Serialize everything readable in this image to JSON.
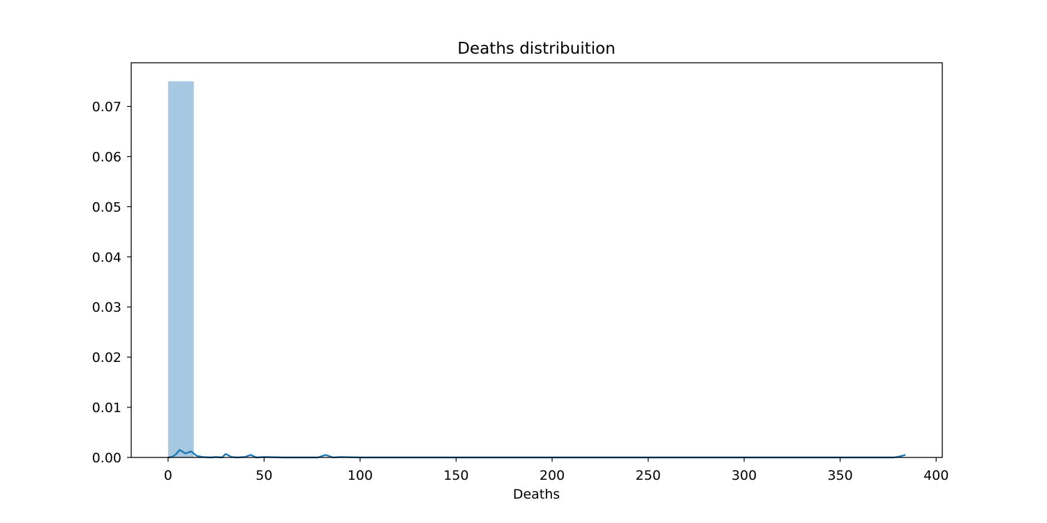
{
  "chart_data": {
    "type": "bar",
    "title": "Deaths distribuition",
    "xlabel": "Deaths",
    "ylabel": "",
    "xlim": [
      -19.2,
      403.2
    ],
    "ylim": [
      0,
      0.0787
    ],
    "grid": false,
    "x_ticks": [
      {
        "value": 0,
        "label": "0"
      },
      {
        "value": 50,
        "label": "50"
      },
      {
        "value": 100,
        "label": "100"
      },
      {
        "value": 150,
        "label": "150"
      },
      {
        "value": 200,
        "label": "200"
      },
      {
        "value": 250,
        "label": "250"
      },
      {
        "value": 300,
        "label": "300"
      },
      {
        "value": 350,
        "label": "350"
      },
      {
        "value": 400,
        "label": "400"
      }
    ],
    "y_ticks": [
      {
        "value": 0.0,
        "label": "0.00"
      },
      {
        "value": 0.01,
        "label": "0.01"
      },
      {
        "value": 0.02,
        "label": "0.02"
      },
      {
        "value": 0.03,
        "label": "0.03"
      },
      {
        "value": 0.04,
        "label": "0.04"
      },
      {
        "value": 0.05,
        "label": "0.05"
      },
      {
        "value": 0.06,
        "label": "0.06"
      },
      {
        "value": 0.07,
        "label": "0.07"
      }
    ],
    "histogram": {
      "color": "#a6c8e0",
      "bins": [
        {
          "x0": 0,
          "x1": 13.4,
          "density": 0.075
        }
      ]
    },
    "kde": {
      "name": "",
      "color": "#1f77b4",
      "points": [
        [
          0,
          0
        ],
        [
          2,
          0.0001
        ],
        [
          4,
          0.0006
        ],
        [
          6,
          0.0015
        ],
        [
          9,
          0.0008
        ],
        [
          12,
          0.0012
        ],
        [
          15,
          0.0003
        ],
        [
          18,
          0.0001
        ],
        [
          22,
          0.0
        ],
        [
          25,
          0.0001
        ],
        [
          28,
          0.0
        ],
        [
          30,
          0.0007
        ],
        [
          33,
          0.0001
        ],
        [
          36,
          0.0
        ],
        [
          40,
          0.0001
        ],
        [
          43,
          0.0005
        ],
        [
          46,
          0.0
        ],
        [
          50,
          0.0001
        ],
        [
          60,
          0.0
        ],
        [
          70,
          0.0
        ],
        [
          78,
          0.0
        ],
        [
          82,
          0.0005
        ],
        [
          86,
          0.0
        ],
        [
          90,
          0.0001
        ],
        [
          100,
          0.0
        ],
        [
          150,
          0.0
        ],
        [
          200,
          0.0
        ],
        [
          250,
          0.0
        ],
        [
          300,
          0.0
        ],
        [
          350,
          0.0
        ],
        [
          378,
          0.0
        ],
        [
          381,
          0.0002
        ],
        [
          384,
          0.0005
        ]
      ]
    }
  }
}
